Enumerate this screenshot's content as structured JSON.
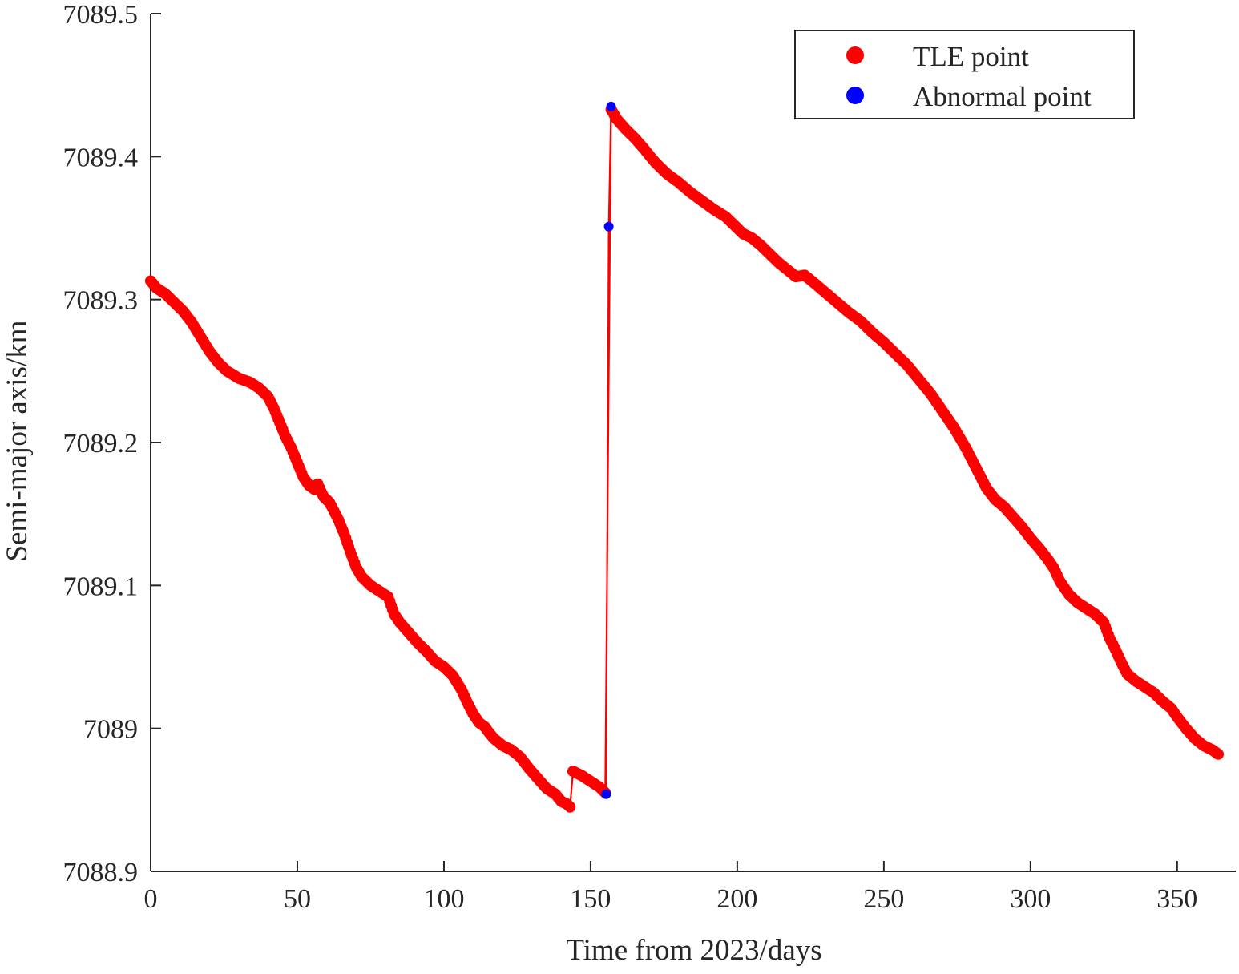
{
  "chart_data": {
    "type": "scatter",
    "xlabel": "Time from 2023/days",
    "ylabel": "Semi-major axis/km",
    "xlim": [
      0,
      370
    ],
    "ylim": [
      7088.9,
      7089.5
    ],
    "xticks": [
      0,
      50,
      100,
      150,
      200,
      250,
      300,
      350
    ],
    "xtick_labels": [
      "0",
      "50",
      "100",
      "150",
      "200",
      "250",
      "300",
      "350"
    ],
    "yticks": [
      7088.9,
      7089,
      7089.1,
      7089.2,
      7089.3,
      7089.4,
      7089.5
    ],
    "ytick_labels": [
      "7088.9",
      "7089",
      "7089.1",
      "7089.2",
      "7089.3",
      "7089.4",
      "7089.5"
    ],
    "grid": false,
    "legend_position": "top-right",
    "series": [
      {
        "name": "TLE point",
        "color": "#ff0000",
        "marker": "circle",
        "connected": true,
        "points": [
          [
            0,
            7089.313
          ],
          [
            2,
            7089.308
          ],
          [
            5,
            7089.304
          ],
          [
            8,
            7089.298
          ],
          [
            11,
            7089.292
          ],
          [
            14,
            7089.284
          ],
          [
            17,
            7089.274
          ],
          [
            20,
            7089.264
          ],
          [
            23,
            7089.256
          ],
          [
            26,
            7089.25
          ],
          [
            30,
            7089.245
          ],
          [
            34,
            7089.242
          ],
          [
            37,
            7089.238
          ],
          [
            40,
            7089.232
          ],
          [
            42,
            7089.224
          ],
          [
            44,
            7089.214
          ],
          [
            46,
            7089.204
          ],
          [
            48,
            7089.196
          ],
          [
            50,
            7089.186
          ],
          [
            52,
            7089.176
          ],
          [
            54,
            7089.17
          ],
          [
            56,
            7089.167
          ],
          [
            57,
            7089.171
          ],
          [
            58,
            7089.166
          ],
          [
            59,
            7089.162
          ],
          [
            61,
            7089.158
          ],
          [
            62,
            7089.154
          ],
          [
            64,
            7089.146
          ],
          [
            66,
            7089.136
          ],
          [
            68,
            7089.124
          ],
          [
            70,
            7089.113
          ],
          [
            72,
            7089.106
          ],
          [
            75,
            7089.1
          ],
          [
            78,
            7089.096
          ],
          [
            81,
            7089.092
          ],
          [
            82,
            7089.086
          ],
          [
            83,
            7089.08
          ],
          [
            85,
            7089.074
          ],
          [
            88,
            7089.067
          ],
          [
            91,
            7089.06
          ],
          [
            94,
            7089.054
          ],
          [
            97,
            7089.047
          ],
          [
            100,
            7089.043
          ],
          [
            103,
            7089.037
          ],
          [
            106,
            7089.027
          ],
          [
            108,
            7089.018
          ],
          [
            110,
            7089.01
          ],
          [
            112,
            7089.004
          ],
          [
            114,
            7089.001
          ],
          [
            115,
            7088.998
          ],
          [
            117,
            7088.993
          ],
          [
            120,
            7088.988
          ],
          [
            123,
            7088.985
          ],
          [
            126,
            7088.98
          ],
          [
            129,
            7088.972
          ],
          [
            132,
            7088.965
          ],
          [
            135,
            7088.958
          ],
          [
            138,
            7088.954
          ],
          [
            140,
            7088.949
          ],
          [
            142,
            7088.947
          ],
          [
            143,
            7088.945
          ],
          [
            144,
            7088.97
          ],
          [
            147,
            7088.967
          ],
          [
            150,
            7088.963
          ],
          [
            153,
            7088.959
          ],
          [
            155,
            7088.955
          ],
          [
            157,
            7089.433
          ],
          [
            159,
            7089.426
          ],
          [
            162,
            7089.419
          ],
          [
            165,
            7089.413
          ],
          [
            168,
            7089.406
          ],
          [
            172,
            7089.396
          ],
          [
            176,
            7089.388
          ],
          [
            180,
            7089.382
          ],
          [
            184,
            7089.375
          ],
          [
            188,
            7089.369
          ],
          [
            192,
            7089.363
          ],
          [
            196,
            7089.358
          ],
          [
            199,
            7089.352
          ],
          [
            202,
            7089.346
          ],
          [
            205,
            7089.343
          ],
          [
            208,
            7089.338
          ],
          [
            211,
            7089.332
          ],
          [
            214,
            7089.326
          ],
          [
            217,
            7089.321
          ],
          [
            220,
            7089.316
          ],
          [
            223,
            7089.317
          ],
          [
            226,
            7089.312
          ],
          [
            230,
            7089.305
          ],
          [
            234,
            7089.298
          ],
          [
            238,
            7089.291
          ],
          [
            242,
            7089.285
          ],
          [
            246,
            7089.277
          ],
          [
            250,
            7089.27
          ],
          [
            254,
            7089.262
          ],
          [
            258,
            7089.254
          ],
          [
            262,
            7089.244
          ],
          [
            266,
            7089.234
          ],
          [
            270,
            7089.222
          ],
          [
            274,
            7089.21
          ],
          [
            278,
            7089.196
          ],
          [
            282,
            7089.18
          ],
          [
            285,
            7089.168
          ],
          [
            288,
            7089.16
          ],
          [
            291,
            7089.155
          ],
          [
            294,
            7089.148
          ],
          [
            297,
            7089.141
          ],
          [
            300,
            7089.133
          ],
          [
            303,
            7089.126
          ],
          [
            306,
            7089.118
          ],
          [
            308,
            7089.112
          ],
          [
            310,
            7089.103
          ],
          [
            313,
            7089.094
          ],
          [
            316,
            7089.088
          ],
          [
            319,
            7089.084
          ],
          [
            322,
            7089.08
          ],
          [
            325,
            7089.074
          ],
          [
            327,
            7089.063
          ],
          [
            329,
            7089.055
          ],
          [
            331,
            7089.046
          ],
          [
            333,
            7089.038
          ],
          [
            336,
            7089.033
          ],
          [
            339,
            7089.029
          ],
          [
            342,
            7089.025
          ],
          [
            345,
            7089.019
          ],
          [
            348,
            7089.014
          ],
          [
            350,
            7089.008
          ],
          [
            353,
            7089.0
          ],
          [
            356,
            7088.993
          ],
          [
            359,
            7088.988
          ],
          [
            362,
            7088.985
          ],
          [
            364,
            7088.982
          ]
        ]
      },
      {
        "name": "Abnormal point",
        "color": "#0000ff",
        "marker": "circle",
        "connected": false,
        "points": [
          [
            155.3,
            7088.954
          ],
          [
            156.2,
            7089.351
          ],
          [
            157,
            7089.435
          ]
        ]
      }
    ],
    "connector_path": [
      [
        143,
        7088.945
      ],
      [
        144,
        7088.97
      ],
      [
        155,
        7088.955
      ],
      [
        155.3,
        7088.954
      ],
      [
        156.2,
        7089.351
      ],
      [
        157,
        7089.435
      ],
      [
        159,
        7089.426
      ]
    ]
  }
}
